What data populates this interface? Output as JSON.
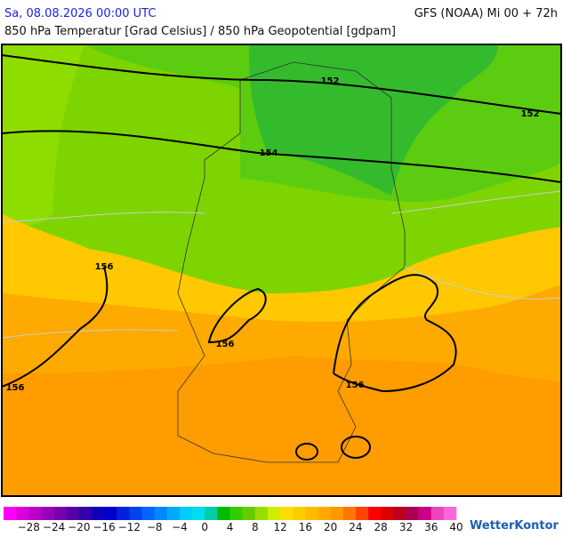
{
  "header": {
    "datetime": "Sa, 08.08.2026 00:00 UTC",
    "model": "GFS (NOAA) Mi 00 + 72h",
    "subtitle": "850 hPa Temperatur [Grad Celsius] / 850 hPa Geopotential [gdpam]"
  },
  "map": {
    "contour_labels": [
      152,
      152,
      154,
      156,
      156,
      156,
      156
    ]
  },
  "colorbar": {
    "ticks": [
      {
        "value": -28,
        "label": "−28"
      },
      {
        "value": -24,
        "label": "−24"
      },
      {
        "value": -20,
        "label": "−20"
      },
      {
        "value": -16,
        "label": "−16"
      },
      {
        "value": -12,
        "label": "−12"
      },
      {
        "value": -8,
        "label": "−8"
      },
      {
        "value": -4,
        "label": "−4"
      },
      0,
      4,
      8,
      12,
      16,
      20,
      24,
      28,
      32,
      36,
      40
    ]
  },
  "logo": "WetterKontor"
}
